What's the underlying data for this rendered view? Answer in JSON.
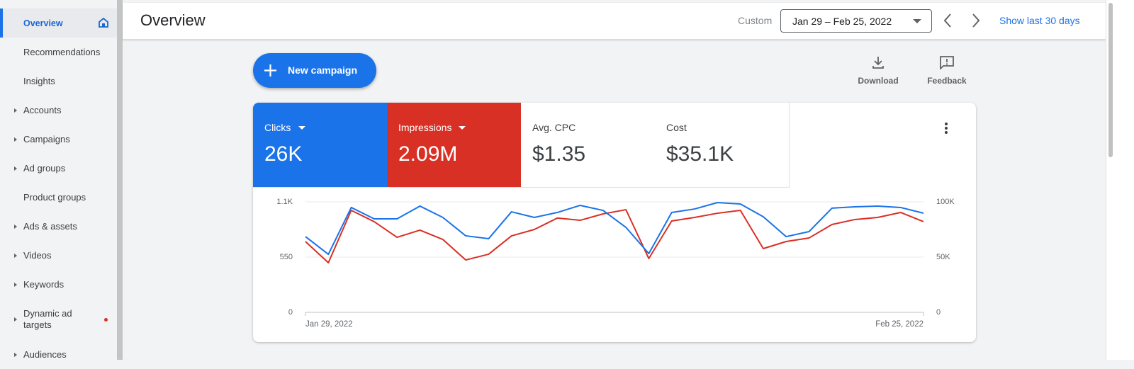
{
  "sidebar": {
    "items": [
      {
        "label": "Overview",
        "active": true
      },
      {
        "label": "Recommendations"
      },
      {
        "label": "Insights"
      },
      {
        "label": "Accounts",
        "expandable": true
      },
      {
        "label": "Campaigns",
        "expandable": true
      },
      {
        "label": "Ad groups",
        "expandable": true
      },
      {
        "label": "Product groups"
      },
      {
        "label": "Ads & assets",
        "expandable": true
      },
      {
        "label": "Videos",
        "expandable": true
      },
      {
        "label": "Keywords",
        "expandable": true
      },
      {
        "label": "Dynamic ad targets",
        "expandable": true,
        "badge": true
      },
      {
        "label": "Audiences",
        "expandable": true
      }
    ]
  },
  "header": {
    "title": "Overview",
    "date_label": "Custom",
    "date_range": "Jan 29 – Feb 25, 2022",
    "show_last": "Show last 30 days"
  },
  "actions": {
    "new_campaign": "New campaign",
    "download": "Download",
    "feedback": "Feedback"
  },
  "metrics": [
    {
      "value": "26K"
    },
    {
      "value": "2.09M"
    },
    {
      "label": "Avg. CPC",
      "value": "$1.35"
    },
    {
      "label": "Cost",
      "value": "$35.1K"
    }
  ],
  "chart_data": {
    "type": "line",
    "categories": [
      "Jan 29, 2022",
      null,
      null,
      null,
      null,
      null,
      null,
      null,
      null,
      null,
      null,
      null,
      null,
      null,
      null,
      null,
      null,
      null,
      null,
      null,
      null,
      null,
      null,
      null,
      null,
      null,
      null,
      "Feb 25, 2022"
    ],
    "series": [
      {
        "name": "Clicks",
        "color": "#1a73e8",
        "axis": "y",
        "values": [
          754,
          578,
          1044,
          931,
          931,
          1058,
          945,
          762,
          733,
          1001,
          945,
          994,
          1065,
          1015,
          846,
          585,
          994,
          1029,
          1093,
          1079,
          952,
          754,
          804,
          1037,
          1051,
          1058,
          1044,
          987
        ]
      },
      {
        "name": "Impressions",
        "color": "#d93025",
        "axis": "y2",
        "values": [
          64100,
          44900,
          92300,
          82100,
          67900,
          74400,
          66000,
          47400,
          52600,
          69200,
          75000,
          85300,
          83300,
          89100,
          92900,
          48700,
          82700,
          85900,
          89700,
          92300,
          57700,
          64100,
          67300,
          79500,
          84000,
          85900,
          90400,
          82100
        ]
      }
    ],
    "ylim": [
      0,
      1100
    ],
    "yticks": [
      0,
      {
        "value": 550,
        "label": "550"
      },
      {
        "value": 1100,
        "label": "1.1K"
      }
    ],
    "y2lim": [
      0,
      100000
    ],
    "y2ticks": [
      0,
      {
        "value": 50000,
        "label": "50K"
      },
      {
        "value": 100000,
        "label": "100K"
      }
    ],
    "grid": true
  }
}
